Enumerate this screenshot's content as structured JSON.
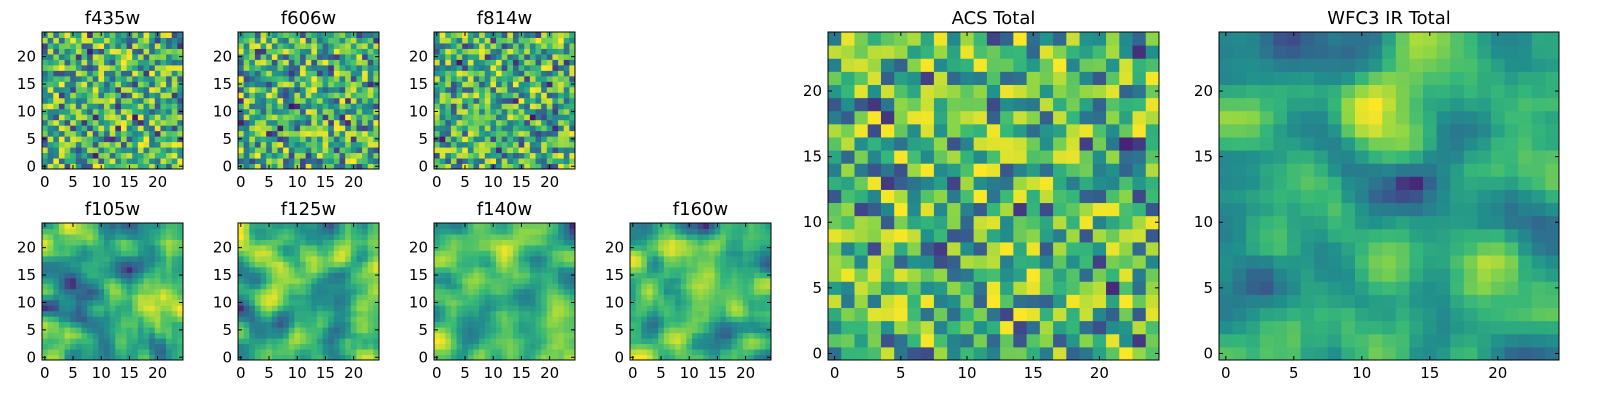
{
  "figure": {
    "colormap": "viridis",
    "seed": 7
  },
  "chart_data": [
    {
      "type": "heatmap",
      "title": "f435w",
      "grid": [
        25,
        25
      ],
      "xlim": [
        -0.5,
        24.5
      ],
      "ylim": [
        -0.5,
        24.5
      ],
      "xticks": [
        0,
        5,
        10,
        15,
        20
      ],
      "yticks": [
        0,
        5,
        10,
        15,
        20
      ],
      "values": "25x25 noise map (generated)"
    },
    {
      "type": "heatmap",
      "title": "f606w",
      "grid": [
        25,
        25
      ],
      "xlim": [
        -0.5,
        24.5
      ],
      "ylim": [
        -0.5,
        24.5
      ],
      "xticks": [
        0,
        5,
        10,
        15,
        20
      ],
      "yticks": [
        0,
        5,
        10,
        15,
        20
      ],
      "values": "25x25 noise map (generated)"
    },
    {
      "type": "heatmap",
      "title": "f814w",
      "grid": [
        25,
        25
      ],
      "xlim": [
        -0.5,
        24.5
      ],
      "ylim": [
        -0.5,
        24.5
      ],
      "xticks": [
        0,
        5,
        10,
        15,
        20
      ],
      "yticks": [
        0,
        5,
        10,
        15,
        20
      ],
      "values": "25x25 noise map (generated)"
    },
    {
      "type": "heatmap",
      "title": "f105w",
      "grid": [
        25,
        25
      ],
      "xlim": [
        -0.5,
        24.5
      ],
      "ylim": [
        -0.5,
        24.5
      ],
      "xticks": [
        0,
        5,
        10,
        15,
        20
      ],
      "yticks": [
        0,
        5,
        10,
        15,
        20
      ],
      "values": "25x25 smooth map (generated)"
    },
    {
      "type": "heatmap",
      "title": "f125w",
      "grid": [
        25,
        25
      ],
      "xlim": [
        -0.5,
        24.5
      ],
      "ylim": [
        -0.5,
        24.5
      ],
      "xticks": [
        0,
        5,
        10,
        15,
        20
      ],
      "yticks": [
        0,
        5,
        10,
        15,
        20
      ],
      "values": "25x25 smooth map (generated)"
    },
    {
      "type": "heatmap",
      "title": "f140w",
      "grid": [
        25,
        25
      ],
      "xlim": [
        -0.5,
        24.5
      ],
      "ylim": [
        -0.5,
        24.5
      ],
      "xticks": [
        0,
        5,
        10,
        15,
        20
      ],
      "yticks": [
        0,
        5,
        10,
        15,
        20
      ],
      "values": "25x25 smooth map (generated)"
    },
    {
      "type": "heatmap",
      "title": "f160w",
      "grid": [
        25,
        25
      ],
      "xlim": [
        -0.5,
        24.5
      ],
      "ylim": [
        -0.5,
        24.5
      ],
      "xticks": [
        0,
        5,
        10,
        15,
        20
      ],
      "yticks": [
        0,
        5,
        10,
        15,
        20
      ],
      "values": "25x25 smooth map (generated)"
    },
    {
      "type": "heatmap",
      "title": "ACS Total",
      "grid": [
        25,
        25
      ],
      "xlim": [
        -0.5,
        24.5
      ],
      "ylim": [
        -0.5,
        24.5
      ],
      "xticks": [
        0,
        5,
        10,
        15,
        20
      ],
      "yticks": [
        0,
        5,
        10,
        15,
        20
      ],
      "values": "25x25 noise map (generated)"
    },
    {
      "type": "heatmap",
      "title": "WFC3 IR Total",
      "grid": [
        25,
        25
      ],
      "xlim": [
        -0.5,
        24.5
      ],
      "ylim": [
        -0.5,
        24.5
      ],
      "xticks": [
        0,
        5,
        10,
        15,
        20
      ],
      "yticks": [
        0,
        5,
        10,
        15,
        20
      ],
      "values": "25x25 smooth map (generated)"
    }
  ]
}
